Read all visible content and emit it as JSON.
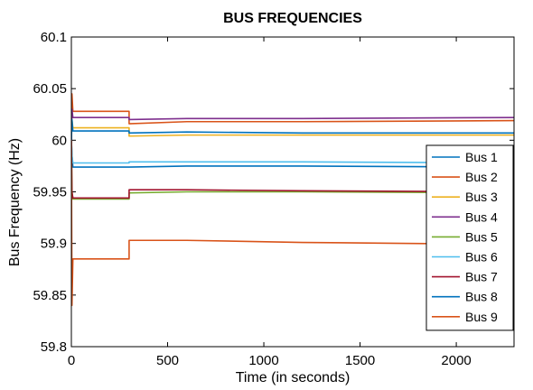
{
  "chart_data": {
    "type": "line",
    "title": "BUS FREQUENCIES",
    "xlabel": "Time (in seconds)",
    "ylabel": "Bus Frequency (Hz)",
    "xlim": [
      0,
      2300
    ],
    "ylim": [
      59.8,
      60.1
    ],
    "xticks": [
      0,
      500,
      1000,
      1500,
      2000
    ],
    "xtick_labels": [
      "0",
      "500",
      "1000",
      "1500",
      "2000"
    ],
    "yticks": [
      59.8,
      59.85,
      59.9,
      59.95,
      60,
      60.05,
      60.1
    ],
    "ytick_labels": [
      "59.8",
      "59.85",
      "59.9",
      "59.95",
      "60",
      "60.05",
      "60.1"
    ],
    "grid": false,
    "legend_position": "right",
    "series": [
      {
        "name": "Bus 1",
        "color": "#0072BD",
        "x": [
          0,
          3,
          8,
          300,
          300,
          600,
          1200,
          2300
        ],
        "y": [
          60.0,
          59.985,
          59.974,
          59.974,
          59.974,
          59.975,
          59.975,
          59.974
        ]
      },
      {
        "name": "Bus 2",
        "color": "#D95319",
        "x": [
          0,
          3,
          8,
          300,
          300,
          600,
          1200,
          2300
        ],
        "y": [
          60.0,
          60.045,
          60.028,
          60.028,
          60.016,
          60.018,
          60.018,
          60.019
        ]
      },
      {
        "name": "Bus 3",
        "color": "#EDB120",
        "x": [
          0,
          3,
          8,
          300,
          300,
          600,
          1200,
          2300
        ],
        "y": [
          60.0,
          60.02,
          60.012,
          60.012,
          60.004,
          60.005,
          60.005,
          60.005
        ]
      },
      {
        "name": "Bus 4",
        "color": "#7E2F8E",
        "x": [
          0,
          3,
          8,
          300,
          300,
          600,
          1200,
          2300
        ],
        "y": [
          60.0,
          60.03,
          60.022,
          60.022,
          60.02,
          60.021,
          60.021,
          60.022
        ]
      },
      {
        "name": "Bus 5",
        "color": "#77AC30",
        "x": [
          0,
          3,
          8,
          300,
          300,
          600,
          1200,
          2300
        ],
        "y": [
          60.0,
          59.95,
          59.943,
          59.943,
          59.949,
          59.95,
          59.95,
          59.949
        ]
      },
      {
        "name": "Bus 6",
        "color": "#4DBEEE",
        "x": [
          0,
          3,
          8,
          300,
          300,
          600,
          1200,
          2300
        ],
        "y": [
          60.0,
          59.985,
          59.978,
          59.978,
          59.979,
          59.979,
          59.979,
          59.978
        ]
      },
      {
        "name": "Bus 7",
        "color": "#A2142F",
        "x": [
          0,
          3,
          8,
          300,
          300,
          600,
          1200,
          2300
        ],
        "y": [
          60.0,
          59.95,
          59.944,
          59.944,
          59.952,
          59.952,
          59.951,
          59.95
        ]
      },
      {
        "name": "Bus 8",
        "color": "#0072BD",
        "x": [
          0,
          3,
          8,
          300,
          300,
          600,
          1200,
          2300
        ],
        "y": [
          60.0,
          60.02,
          60.009,
          60.009,
          60.007,
          60.008,
          60.007,
          60.007
        ]
      },
      {
        "name": "Bus 9",
        "color": "#D95319",
        "x": [
          0,
          3,
          8,
          300,
          300,
          600,
          1200,
          2300
        ],
        "y": [
          60.0,
          59.84,
          59.885,
          59.885,
          59.903,
          59.903,
          59.901,
          59.899
        ]
      }
    ]
  }
}
